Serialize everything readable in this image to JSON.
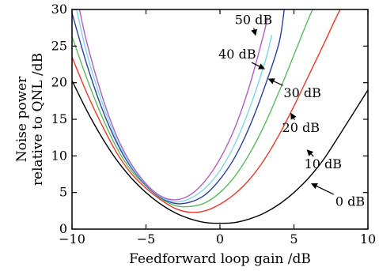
{
  "chart_data": {
    "type": "line",
    "xlabel": "Feedforward loop gain /dB",
    "ylabel_lines": [
      "Noise power",
      "relative to QNL /dB"
    ],
    "xlim": [
      -10,
      10
    ],
    "ylim": [
      0,
      30
    ],
    "x_ticks": [
      -10,
      -5,
      0,
      5,
      10
    ],
    "x_tick_labels": [
      "−10",
      "−5",
      "0",
      "5",
      "10"
    ],
    "y_ticks": [
      0,
      5,
      10,
      15,
      20,
      25,
      30
    ],
    "y_tick_labels": [
      "0",
      "5",
      "10",
      "15",
      "20",
      "25",
      "30"
    ],
    "grid": false,
    "series": [
      {
        "name": "0 dB",
        "color": "#000000",
        "x": [
          -10,
          -9,
          -8,
          -7,
          -6,
          -5,
          -4,
          -3,
          -2,
          -1,
          0,
          1,
          2,
          3,
          4,
          5,
          6,
          7,
          8,
          9,
          10
        ],
        "y": [
          20.3,
          16.2,
          12.6,
          9.5,
          7.0,
          5.0,
          3.4,
          2.2,
          1.4,
          0.9,
          0.8,
          0.9,
          1.4,
          2.2,
          3.4,
          5.0,
          7.0,
          9.5,
          12.6,
          15.8,
          19.0
        ]
      },
      {
        "name": "10 dB",
        "color": "#e8382a",
        "x": [
          -10,
          -9,
          -8,
          -7,
          -6,
          -5,
          -4,
          -3,
          -2,
          -1,
          0,
          1,
          2,
          3,
          4,
          5,
          6,
          7,
          8,
          8.5
        ],
        "y": [
          23.5,
          18.6,
          14.3,
          10.5,
          7.6,
          5.6,
          4.0,
          2.8,
          2.3,
          2.5,
          3.4,
          4.8,
          6.8,
          9.5,
          12.9,
          16.8,
          21.0,
          25.2,
          29.5,
          31.0
        ]
      },
      {
        "name": "20 dB",
        "color": "#5cb85c",
        "x": [
          -10,
          -9,
          -8,
          -7,
          -6,
          -5,
          -4,
          -3,
          -2,
          -1,
          0,
          1,
          2,
          3,
          4,
          5,
          6,
          6.5
        ],
        "y": [
          26.3,
          20.6,
          15.5,
          11.2,
          8.0,
          5.9,
          4.2,
          3.2,
          3.1,
          3.6,
          5.0,
          7.2,
          10.3,
          14.2,
          18.8,
          23.8,
          28.8,
          31.0
        ]
      },
      {
        "name": "30 dB",
        "color": "#2b3f9e",
        "x": [
          -10,
          -9,
          -8,
          -7,
          -6,
          -5,
          -4,
          -3,
          -2,
          -1,
          0,
          1,
          2,
          3,
          4,
          4.4
        ],
        "y": [
          29.5,
          22.5,
          16.6,
          11.9,
          8.4,
          6.0,
          4.3,
          3.5,
          3.7,
          4.7,
          6.8,
          9.8,
          14.0,
          19.3,
          25.5,
          31.0
        ]
      },
      {
        "name": "40 dB",
        "color": "#7fd6e6",
        "x": [
          -9.8,
          -9,
          -8,
          -7,
          -6,
          -5,
          -4,
          -3,
          -2,
          -1,
          0,
          1,
          2,
          3,
          3.5
        ],
        "y": [
          31.0,
          24.0,
          17.5,
          12.3,
          8.6,
          6.1,
          4.4,
          3.7,
          4.2,
          5.6,
          8.0,
          11.6,
          16.5,
          22.5,
          26.5
        ]
      },
      {
        "name": "50 dB",
        "color": "#b05fc0",
        "x": [
          -9.6,
          -9,
          -8,
          -7,
          -6,
          -5,
          -4,
          -3,
          -2,
          -1,
          0,
          1,
          2,
          3,
          3.2
        ],
        "y": [
          31.0,
          25.5,
          18.4,
          12.8,
          8.9,
          6.2,
          4.5,
          4.0,
          4.7,
          6.6,
          9.6,
          13.8,
          19.6,
          27.0,
          29.0
        ]
      }
    ],
    "annotations": [
      {
        "text": "50 dB",
        "series": "50 dB",
        "arrow_to": [
          2.4,
          26.5
        ],
        "text_at": [
          1.0,
          28.0
        ]
      },
      {
        "text": "40 dB",
        "series": "40 dB",
        "arrow_to": [
          3.0,
          21.9
        ],
        "text_at": [
          -0.1,
          23.3
        ]
      },
      {
        "text": "30 dB",
        "series": "30 dB",
        "arrow_to": [
          3.3,
          20.5
        ],
        "text_at": [
          4.3,
          18.0
        ]
      },
      {
        "text": "20 dB",
        "series": "20 dB",
        "arrow_to": [
          4.8,
          15.8
        ],
        "text_at": [
          4.2,
          13.3
        ]
      },
      {
        "text": "10 dB",
        "series": "10 dB",
        "arrow_to": [
          5.9,
          10.8
        ],
        "text_at": [
          5.7,
          8.3
        ]
      },
      {
        "text": "0 dB",
        "series": "0 dB",
        "arrow_to": [
          6.2,
          6.2
        ],
        "text_at": [
          7.8,
          3.2
        ]
      }
    ]
  }
}
